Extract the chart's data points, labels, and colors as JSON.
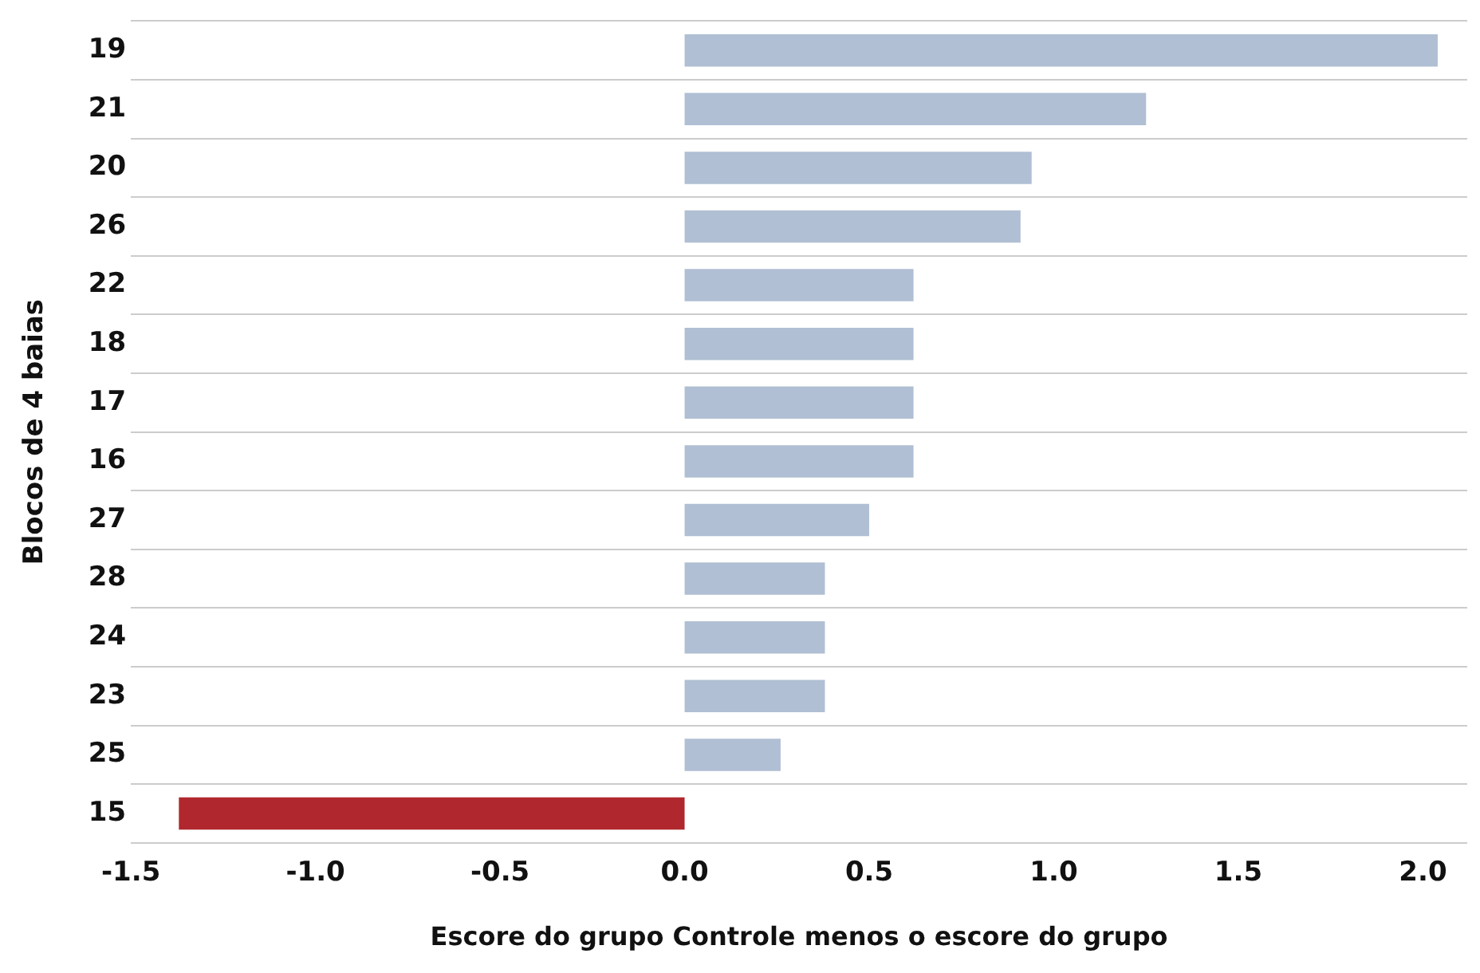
{
  "chart_data": {
    "type": "bar",
    "orientation": "horizontal",
    "xlabel": "Escore do grupo Controle menos o escore do grupo",
    "ylabel": "Blocos de 4 baias",
    "categories": [
      "19",
      "21",
      "20",
      "26",
      "22",
      "18",
      "17",
      "16",
      "27",
      "28",
      "24",
      "23",
      "25",
      "15"
    ],
    "values": [
      2.04,
      1.25,
      0.94,
      0.91,
      0.62,
      0.62,
      0.62,
      0.62,
      0.5,
      0.38,
      0.38,
      0.38,
      0.26,
      -1.37
    ],
    "colors": [
      "#b0bfd3",
      "#b0bfd3",
      "#b0bfd3",
      "#b0bfd3",
      "#b0bfd3",
      "#b0bfd3",
      "#b0bfd3",
      "#b0bfd3",
      "#b0bfd3",
      "#b0bfd3",
      "#b0bfd3",
      "#b0bfd3",
      "#b0bfd3",
      "#b0282e"
    ],
    "xlim": [
      -1.5,
      2.12
    ],
    "xticks": [
      -1.5,
      {
        "value": -1,
        "label": "-1.0"
      },
      -0.5,
      {
        "value": 0,
        "label": "0.0"
      },
      0.5,
      {
        "value": 1,
        "label": "1.0"
      },
      1.5,
      {
        "value": 2,
        "label": "2.0"
      }
    ],
    "grid": "y",
    "legend": false
  }
}
